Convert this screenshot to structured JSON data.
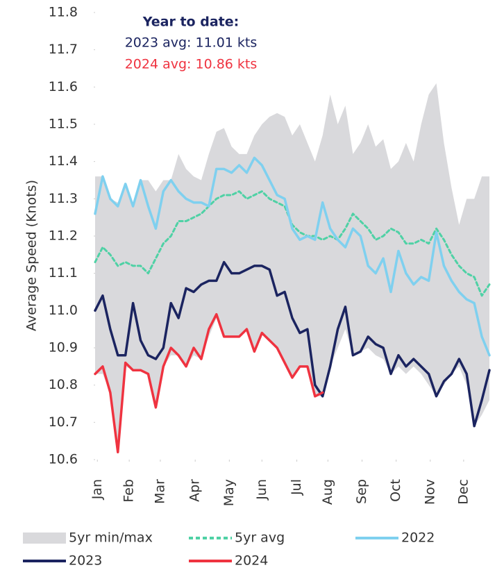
{
  "chart_data": {
    "type": "line",
    "ylabel": "Average Speed (Knots)",
    "annotations": [
      "Year to date:",
      "2023 avg: 11.01 kts",
      "2024 avg: 10.86 kts"
    ],
    "x": [
      0,
      1,
      2,
      3,
      4,
      5,
      6,
      7,
      8,
      9,
      10,
      11,
      12,
      13,
      14,
      15,
      16,
      17,
      18,
      19,
      20,
      21,
      22,
      23,
      24,
      25,
      26,
      27,
      28,
      29,
      30,
      31,
      32,
      33,
      34,
      35,
      36,
      37,
      38,
      39,
      40,
      41,
      42,
      43,
      44,
      45,
      46,
      47,
      48,
      49,
      50,
      51,
      52
    ],
    "xlim": [
      0,
      52
    ],
    "xticks": [
      {
        "value": 0.3,
        "label": "Jan"
      },
      {
        "value": 4.5,
        "label": "Feb"
      },
      {
        "value": 8.6,
        "label": "Mar"
      },
      {
        "value": 13.2,
        "label": "Apr"
      },
      {
        "value": 17.7,
        "label": "May"
      },
      {
        "value": 22,
        "label": "Jun"
      },
      {
        "value": 26.6,
        "label": "Jul"
      },
      {
        "value": 30.7,
        "label": "Aug"
      },
      {
        "value": 35.2,
        "label": "Sep"
      },
      {
        "value": 39.7,
        "label": "Oct"
      },
      {
        "value": 44.2,
        "label": "Nov"
      },
      {
        "value": 48.6,
        "label": "Dec"
      }
    ],
    "ylim": [
      10.6,
      11.8
    ],
    "yticks": [
      11.8,
      11.7,
      11.6,
      11.5,
      11.4,
      11.3,
      11.2,
      11.1,
      {
        "value": 11,
        "label": "11.0"
      },
      10.9,
      10.8,
      10.7,
      10.6
    ],
    "band": {
      "name": "5yr min/max",
      "color": "#d9d9dc",
      "max": [
        11.36,
        11.36,
        11.3,
        11.29,
        11.34,
        11.29,
        11.35,
        11.35,
        11.32,
        11.35,
        11.35,
        11.42,
        11.38,
        11.36,
        11.35,
        11.42,
        11.48,
        11.49,
        11.44,
        11.42,
        11.42,
        11.47,
        11.5,
        11.52,
        11.53,
        11.52,
        11.47,
        11.5,
        11.45,
        11.4,
        11.47,
        11.58,
        11.5,
        11.55,
        11.42,
        11.45,
        11.5,
        11.44,
        11.46,
        11.38,
        11.4,
        11.45,
        11.4,
        11.5,
        11.58,
        11.61,
        11.45,
        11.33,
        11.23,
        11.3,
        11.3,
        11.36,
        11.36
      ],
      "min": [
        10.83,
        10.83,
        10.78,
        10.62,
        10.85,
        10.84,
        10.84,
        10.83,
        10.74,
        10.85,
        10.88,
        10.88,
        10.85,
        10.88,
        10.87,
        10.93,
        10.98,
        10.93,
        10.93,
        10.93,
        10.95,
        10.89,
        10.94,
        10.92,
        10.9,
        10.86,
        10.82,
        10.85,
        10.85,
        10.77,
        10.77,
        10.85,
        10.9,
        10.95,
        10.88,
        10.89,
        10.9,
        10.88,
        10.87,
        10.83,
        10.85,
        10.83,
        10.85,
        10.83,
        10.8,
        10.77,
        10.8,
        10.83,
        10.85,
        10.8,
        10.69,
        10.72,
        10.76
      ]
    },
    "series": [
      {
        "name": "5yr avg",
        "color": "#4fd1a5",
        "dashed": true,
        "values": [
          11.13,
          11.17,
          11.15,
          11.12,
          11.13,
          11.12,
          11.12,
          11.1,
          11.14,
          11.18,
          11.2,
          11.24,
          11.24,
          11.25,
          11.26,
          11.28,
          11.3,
          11.31,
          11.31,
          11.32,
          11.3,
          11.31,
          11.32,
          11.3,
          11.29,
          11.28,
          11.23,
          11.21,
          11.2,
          11.2,
          11.19,
          11.2,
          11.19,
          11.22,
          11.26,
          11.24,
          11.22,
          11.19,
          11.2,
          11.22,
          11.21,
          11.18,
          11.18,
          11.19,
          11.18,
          11.22,
          11.19,
          11.15,
          11.12,
          11.1,
          11.09,
          11.04,
          11.07
        ]
      },
      {
        "name": "2022",
        "color": "#7fd0ef",
        "values": [
          11.26,
          11.36,
          11.3,
          11.28,
          11.34,
          11.28,
          11.35,
          11.28,
          11.22,
          11.32,
          11.35,
          11.32,
          11.3,
          11.29,
          11.29,
          11.28,
          11.38,
          11.38,
          11.37,
          11.39,
          11.37,
          11.41,
          11.39,
          11.35,
          11.31,
          11.3,
          11.22,
          11.19,
          11.2,
          11.19,
          11.29,
          11.22,
          11.19,
          11.17,
          11.22,
          11.2,
          11.12,
          11.1,
          11.14,
          11.05,
          11.16,
          11.1,
          11.07,
          11.09,
          11.08,
          11.21,
          11.12,
          11.08,
          11.05,
          11.03,
          11.02,
          10.93,
          10.88
        ]
      },
      {
        "name": "2023",
        "color": "#1b2460",
        "values": [
          11.0,
          11.04,
          10.95,
          10.88,
          10.88,
          11.02,
          10.92,
          10.88,
          10.87,
          10.9,
          11.02,
          10.98,
          11.06,
          11.05,
          11.07,
          11.08,
          11.08,
          11.13,
          11.1,
          11.1,
          11.11,
          11.12,
          11.12,
          11.11,
          11.04,
          11.05,
          10.98,
          10.94,
          10.95,
          10.8,
          10.77,
          10.85,
          10.95,
          11.01,
          10.88,
          10.89,
          10.93,
          10.91,
          10.9,
          10.83,
          10.88,
          10.85,
          10.87,
          10.85,
          10.83,
          10.77,
          10.81,
          10.83,
          10.87,
          10.83,
          10.69,
          10.76,
          10.84
        ]
      },
      {
        "name": "2024",
        "color": "#ef3340",
        "values": [
          10.83,
          10.85,
          10.78,
          10.62,
          10.86,
          10.84,
          10.84,
          10.83,
          10.74,
          10.85,
          10.9,
          10.88,
          10.85,
          10.9,
          10.87,
          10.95,
          10.99,
          10.93,
          10.93,
          10.93,
          10.95,
          10.89,
          10.94,
          10.92,
          10.9,
          10.86,
          10.82,
          10.85,
          10.85,
          10.77,
          10.78,
          null,
          null,
          null,
          null,
          null,
          null,
          null,
          null,
          null,
          null,
          null,
          null,
          null,
          null,
          null,
          null,
          null,
          null,
          null,
          null,
          null,
          null
        ]
      }
    ]
  }
}
